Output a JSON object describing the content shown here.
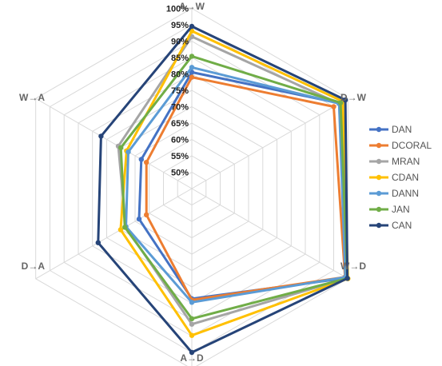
{
  "chart_data": {
    "type": "radar",
    "axes": [
      "A→W",
      "D→W",
      "W→D",
      "A→D",
      "D→A",
      "W→A"
    ],
    "tick_labels": [
      "50%",
      "55%",
      "60%",
      "65%",
      "70%",
      "75%",
      "80%",
      "85%",
      "90%",
      "95%",
      "100%"
    ],
    "rlim": [
      50,
      100
    ],
    "grid": true,
    "legend_position": "right",
    "series": [
      {
        "name": "DAN",
        "color": "#4472c4",
        "values": [
          80.5,
          97.1,
          99.6,
          78.6,
          63.6,
          62.8
        ]
      },
      {
        "name": "DCORAL",
        "color": "#ed7d31",
        "values": [
          79.0,
          95.0,
          99.0,
          79.0,
          61.0,
          61.0
        ]
      },
      {
        "name": "MRAN",
        "color": "#a5a5a5",
        "values": [
          91.4,
          96.9,
          99.8,
          86.4,
          68.3,
          70.9
        ]
      },
      {
        "name": "CDAN",
        "color": "#ffc000",
        "values": [
          93.1,
          98.2,
          100.0,
          89.8,
          70.1,
          68.0
        ]
      },
      {
        "name": "DANN",
        "color": "#5b9bd5",
        "values": [
          82.0,
          96.9,
          99.1,
          79.7,
          68.2,
          67.4
        ]
      },
      {
        "name": "JAN",
        "color": "#70ad47",
        "values": [
          85.4,
          97.4,
          99.8,
          84.7,
          68.6,
          70.0
        ]
      },
      {
        "name": "CAN",
        "color": "#264478",
        "values": [
          94.5,
          99.1,
          99.8,
          95.0,
          78.0,
          77.0
        ]
      }
    ]
  }
}
